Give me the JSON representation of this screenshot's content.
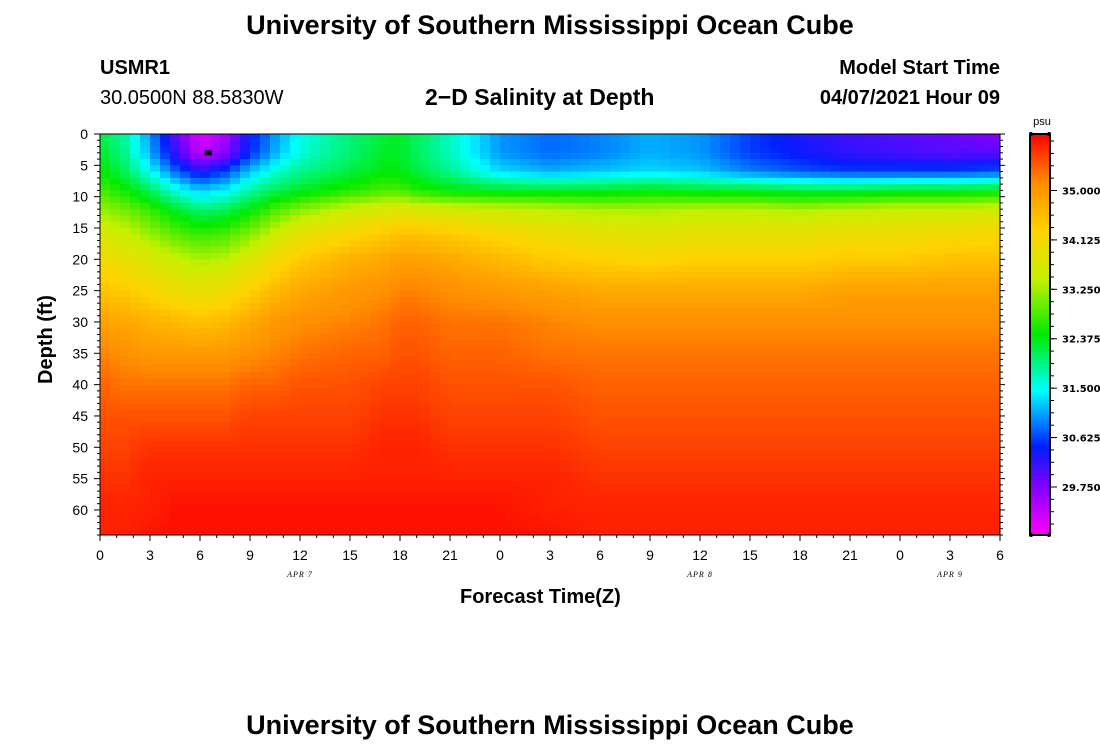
{
  "page": {
    "title_top": "University of Southern Mississippi Ocean Cube",
    "title_bottom": "University of Southern Mississippi Ocean Cube",
    "station_id": "USMR1",
    "station_coords": "30.0500N  88.5830W",
    "plot_title": "2−D Salinity at Depth",
    "model_start_label": "Model Start Time",
    "model_start_value": "04/07/2021 Hour 09"
  },
  "chart_data": {
    "type": "heatmap",
    "title": "2−D Salinity at Depth",
    "xlabel": "Forecast Time(Z)",
    "ylabel": "Depth (ft)",
    "x_hours_range": [
      0,
      54
    ],
    "x_tick_labels": [
      "0",
      "3",
      "6",
      "9",
      "12",
      "15",
      "18",
      "21",
      "0",
      "3",
      "6",
      "9",
      "12",
      "15",
      "18",
      "21",
      "0",
      "3",
      "6"
    ],
    "date_labels": [
      {
        "text": "APR 7",
        "hour": 12
      },
      {
        "text": "APR 8",
        "hour": 36
      },
      {
        "text": "APR 9",
        "hour": 51
      }
    ],
    "y_depth_range_ft": [
      0,
      64
    ],
    "y_tick_labels": [
      "0",
      "5",
      "10",
      "15",
      "20",
      "25",
      "30",
      "35",
      "40",
      "45",
      "50",
      "55",
      "60"
    ],
    "colorbar": {
      "unit": "psu",
      "range": [
        28.9,
        36.0
      ],
      "tick_labels": [
        "35.000",
        "34.125",
        "33.250",
        "32.375",
        "31.500",
        "30.625",
        "29.750"
      ],
      "tick_values": [
        35.0,
        34.125,
        33.25,
        32.375,
        31.5,
        30.625,
        29.75
      ]
    },
    "grid_hours": [
      0,
      1.5,
      3,
      4.5,
      6,
      7.5,
      9,
      10.5,
      12,
      15,
      17,
      18,
      19,
      21,
      24,
      27,
      30,
      33,
      36,
      39,
      42,
      45,
      48,
      51,
      54
    ],
    "grid_depths_ft": [
      0,
      3,
      6,
      9,
      12,
      16,
      20,
      25,
      30,
      35,
      40,
      45,
      50,
      55,
      60,
      64
    ],
    "salinity_psu": [
      [
        32.2,
        31.8,
        31.0,
        30.0,
        29.1,
        29.5,
        30.4,
        31.0,
        31.5,
        32.0,
        32.2,
        32.3,
        32.1,
        31.7,
        31.0,
        30.8,
        30.9,
        31.1,
        31.0,
        30.6,
        30.3,
        30.1,
        30.0,
        29.9,
        29.7
      ],
      [
        32.3,
        31.9,
        31.1,
        30.2,
        29.3,
        29.7,
        30.5,
        31.1,
        31.6,
        32.0,
        32.3,
        32.3,
        32.1,
        31.7,
        31.0,
        30.8,
        30.9,
        31.1,
        31.0,
        30.6,
        30.4,
        30.2,
        30.1,
        30.0,
        30.0
      ],
      [
        32.5,
        32.1,
        31.5,
        30.8,
        30.3,
        30.6,
        31.2,
        31.6,
        31.9,
        32.2,
        32.4,
        32.4,
        32.2,
        31.9,
        31.3,
        31.1,
        31.2,
        31.3,
        31.2,
        30.9,
        30.7,
        30.6,
        30.6,
        30.6,
        30.7
      ],
      [
        32.8,
        32.5,
        32.1,
        31.6,
        31.2,
        31.4,
        31.8,
        32.1,
        32.3,
        32.6,
        32.8,
        32.8,
        32.6,
        32.4,
        32.3,
        32.3,
        32.3,
        32.4,
        32.3,
        32.3,
        32.2,
        32.2,
        32.3,
        32.3,
        32.4
      ],
      [
        33.2,
        33.0,
        32.7,
        32.3,
        32.0,
        32.1,
        32.4,
        32.8,
        33.1,
        33.5,
        33.7,
        33.8,
        33.7,
        33.6,
        33.5,
        33.4,
        33.3,
        33.3,
        33.4,
        33.4,
        33.3,
        33.4,
        33.5,
        33.5,
        33.6
      ],
      [
        33.7,
        33.5,
        33.2,
        32.9,
        32.7,
        32.8,
        33.1,
        33.5,
        33.9,
        34.2,
        34.4,
        34.5,
        34.5,
        34.4,
        34.2,
        34.0,
        33.9,
        33.8,
        33.9,
        33.9,
        33.9,
        34.0,
        34.0,
        34.1,
        34.2
      ],
      [
        34.1,
        33.9,
        33.7,
        33.5,
        33.3,
        33.4,
        33.7,
        34.1,
        34.4,
        34.7,
        34.8,
        34.9,
        34.9,
        34.8,
        34.6,
        34.4,
        34.3,
        34.2,
        34.3,
        34.3,
        34.3,
        34.4,
        34.4,
        34.5,
        34.5
      ],
      [
        34.5,
        34.4,
        34.2,
        34.0,
        33.9,
        34.0,
        34.3,
        34.6,
        34.8,
        35.0,
        35.1,
        35.2,
        35.2,
        35.1,
        35.0,
        34.9,
        34.8,
        34.8,
        34.8,
        34.8,
        34.8,
        34.9,
        34.9,
        34.9,
        34.9
      ],
      [
        34.9,
        34.8,
        34.7,
        34.6,
        34.5,
        34.6,
        34.8,
        35.0,
        35.1,
        35.2,
        35.3,
        35.4,
        35.4,
        35.3,
        35.3,
        35.2,
        35.1,
        35.1,
        35.1,
        35.1,
        35.1,
        35.1,
        35.1,
        35.1,
        35.1
      ],
      [
        35.2,
        35.1,
        35.0,
        35.0,
        35.0,
        35.0,
        35.1,
        35.2,
        35.3,
        35.4,
        35.4,
        35.5,
        35.5,
        35.4,
        35.4,
        35.3,
        35.3,
        35.3,
        35.3,
        35.3,
        35.3,
        35.3,
        35.3,
        35.3,
        35.3
      ],
      [
        35.4,
        35.3,
        35.3,
        35.3,
        35.3,
        35.3,
        35.4,
        35.4,
        35.5,
        35.5,
        35.6,
        35.6,
        35.6,
        35.5,
        35.5,
        35.5,
        35.4,
        35.4,
        35.4,
        35.4,
        35.4,
        35.4,
        35.4,
        35.4,
        35.4
      ],
      [
        35.5,
        35.5,
        35.5,
        35.5,
        35.5,
        35.5,
        35.6,
        35.6,
        35.6,
        35.6,
        35.7,
        35.7,
        35.7,
        35.6,
        35.6,
        35.6,
        35.5,
        35.5,
        35.5,
        35.5,
        35.5,
        35.5,
        35.5,
        35.5,
        35.5
      ],
      [
        35.6,
        35.6,
        35.7,
        35.7,
        35.7,
        35.7,
        35.7,
        35.7,
        35.7,
        35.7,
        35.8,
        35.8,
        35.8,
        35.7,
        35.7,
        35.7,
        35.6,
        35.6,
        35.6,
        35.6,
        35.6,
        35.6,
        35.6,
        35.6,
        35.6
      ],
      [
        35.7,
        35.7,
        35.8,
        35.8,
        35.8,
        35.8,
        35.8,
        35.8,
        35.8,
        35.8,
        35.8,
        35.8,
        35.8,
        35.8,
        35.8,
        35.8,
        35.7,
        35.7,
        35.7,
        35.7,
        35.7,
        35.7,
        35.7,
        35.7,
        35.7
      ],
      [
        35.8,
        35.8,
        35.8,
        35.9,
        35.9,
        35.9,
        35.9,
        35.9,
        35.9,
        35.9,
        35.9,
        35.9,
        35.9,
        35.9,
        35.9,
        35.8,
        35.8,
        35.8,
        35.8,
        35.8,
        35.8,
        35.8,
        35.8,
        35.8,
        35.8
      ],
      [
        35.8,
        35.8,
        35.9,
        35.9,
        35.9,
        35.9,
        35.9,
        35.9,
        35.9,
        35.9,
        35.9,
        35.9,
        35.9,
        35.9,
        35.9,
        35.9,
        35.8,
        35.8,
        35.8,
        35.8,
        35.8,
        35.8,
        35.8,
        35.8,
        35.8
      ]
    ],
    "min_marker": {
      "hour": 6.5,
      "depth_ft": 3
    }
  }
}
